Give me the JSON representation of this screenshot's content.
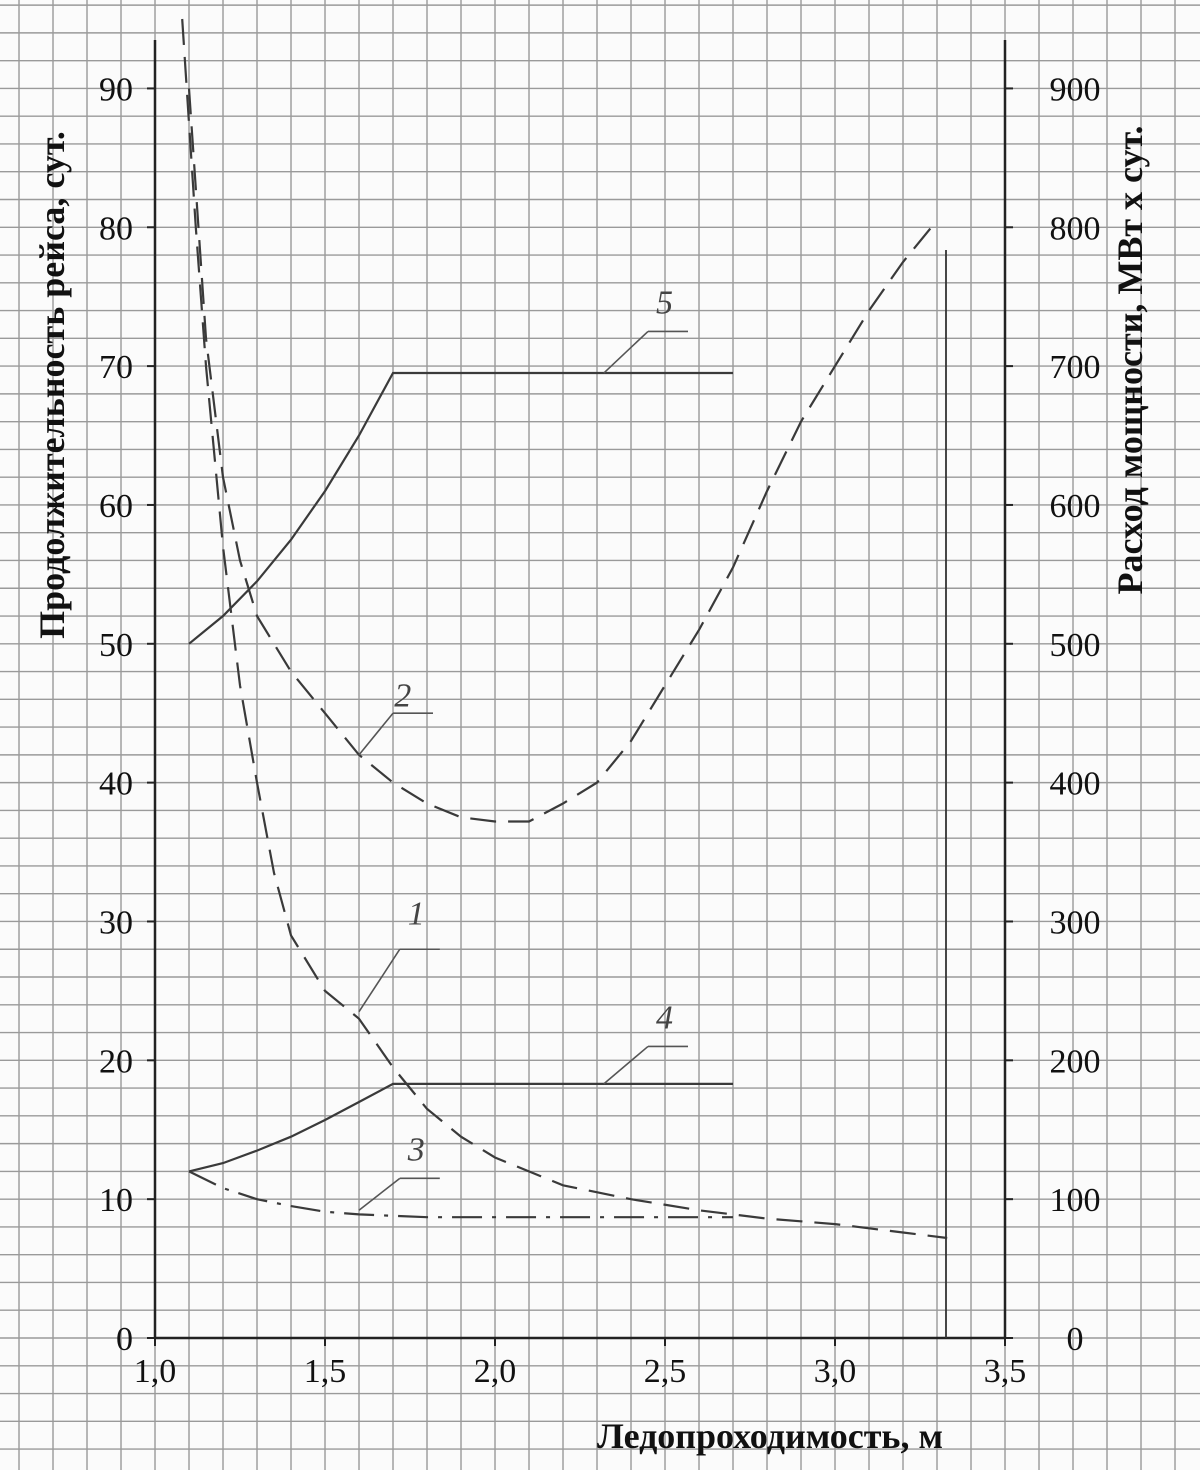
{
  "chart_data": {
    "type": "line",
    "title": "",
    "xlabel": "Ледопроходимость, м",
    "ylabel_left": "Продолжительность рейса, сут.",
    "ylabel_right": "Расход мощности, МВт x сут.",
    "xlim": [
      1.0,
      3.5
    ],
    "ylim_left": [
      0,
      95
    ],
    "ylim_right": [
      0,
      950
    ],
    "grid": true,
    "x_ticks": [
      "1,0",
      "1,5",
      "2,0",
      "2,5",
      "3,0",
      "3,5"
    ],
    "y_ticks_left": [
      "0",
      "10",
      "20",
      "30",
      "40",
      "50",
      "60",
      "70",
      "80",
      "90"
    ],
    "y_ticks_right": [
      "0",
      "100",
      "200",
      "300",
      "400",
      "500",
      "600",
      "700",
      "800",
      "900"
    ],
    "series": [
      {
        "name": "1",
        "axis": "left",
        "style": "dashed",
        "points": [
          [
            1.08,
            95
          ],
          [
            1.12,
            80
          ],
          [
            1.15,
            70
          ],
          [
            1.2,
            57
          ],
          [
            1.25,
            47
          ],
          [
            1.3,
            40
          ],
          [
            1.35,
            33.5
          ],
          [
            1.4,
            29
          ],
          [
            1.5,
            25
          ],
          [
            1.6,
            23
          ],
          [
            1.7,
            19.5
          ],
          [
            1.8,
            16.5
          ],
          [
            1.9,
            14.5
          ],
          [
            2.0,
            13
          ],
          [
            2.2,
            11
          ],
          [
            2.4,
            10
          ],
          [
            2.6,
            9.2
          ],
          [
            2.8,
            8.6
          ],
          [
            3.0,
            8.2
          ],
          [
            3.2,
            7.6
          ],
          [
            3.33,
            7.2
          ]
        ]
      },
      {
        "name": "2",
        "axis": "right",
        "style": "dashed",
        "points": [
          [
            1.1,
            900
          ],
          [
            1.15,
            720
          ],
          [
            1.2,
            620
          ],
          [
            1.25,
            560
          ],
          [
            1.3,
            520
          ],
          [
            1.4,
            480
          ],
          [
            1.5,
            450
          ],
          [
            1.6,
            420
          ],
          [
            1.7,
            400
          ],
          [
            1.8,
            385
          ],
          [
            1.9,
            375
          ],
          [
            2.0,
            372
          ],
          [
            2.1,
            372
          ],
          [
            2.2,
            385
          ],
          [
            2.3,
            400
          ],
          [
            2.4,
            430
          ],
          [
            2.5,
            470
          ],
          [
            2.6,
            510
          ],
          [
            2.7,
            555
          ],
          [
            2.8,
            610
          ],
          [
            2.9,
            660
          ],
          [
            3.0,
            700
          ],
          [
            3.1,
            740
          ],
          [
            3.2,
            775
          ],
          [
            3.3,
            805
          ]
        ]
      },
      {
        "name": "3",
        "axis": "left",
        "style": "dash-dot",
        "points": [
          [
            1.1,
            12
          ],
          [
            1.2,
            10.8
          ],
          [
            1.3,
            10
          ],
          [
            1.4,
            9.5
          ],
          [
            1.5,
            9.1
          ],
          [
            1.6,
            8.9
          ],
          [
            1.7,
            8.8
          ],
          [
            1.8,
            8.7
          ],
          [
            2.0,
            8.7
          ],
          [
            2.2,
            8.7
          ],
          [
            2.4,
            8.7
          ],
          [
            2.7,
            8.7
          ]
        ]
      },
      {
        "name": "4",
        "axis": "left",
        "style": "solid",
        "points": [
          [
            1.1,
            12
          ],
          [
            1.2,
            12.6
          ],
          [
            1.3,
            13.5
          ],
          [
            1.4,
            14.5
          ],
          [
            1.5,
            15.7
          ],
          [
            1.6,
            17
          ],
          [
            1.7,
            18.3
          ],
          [
            1.9,
            18.3
          ],
          [
            2.2,
            18.3
          ],
          [
            2.5,
            18.3
          ],
          [
            2.7,
            18.3
          ]
        ]
      },
      {
        "name": "5",
        "axis": "left",
        "style": "solid",
        "points": [
          [
            1.1,
            50
          ],
          [
            1.2,
            52
          ],
          [
            1.3,
            54.5
          ],
          [
            1.4,
            57.5
          ],
          [
            1.5,
            61
          ],
          [
            1.6,
            65
          ],
          [
            1.7,
            69.5
          ],
          [
            1.9,
            69.5
          ],
          [
            2.2,
            69.5
          ],
          [
            2.5,
            69.5
          ],
          [
            2.7,
            69.5
          ]
        ]
      }
    ]
  }
}
